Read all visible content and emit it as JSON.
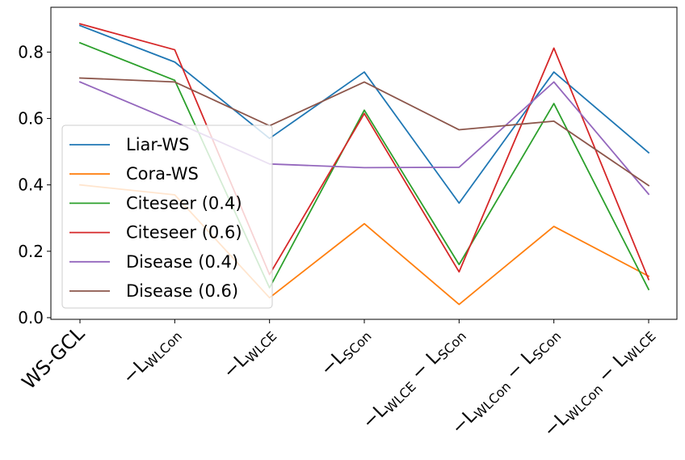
{
  "chart_data": {
    "type": "line",
    "categories": [
      {
        "id": "ws-gcl",
        "parts": [
          {
            "t": "WS-GCL"
          }
        ]
      },
      {
        "id": "minus-lwlcon",
        "parts": [
          {
            "t": "−L"
          },
          {
            "t": "WLCon",
            "sub": true
          }
        ]
      },
      {
        "id": "minus-lwlce",
        "parts": [
          {
            "t": "−L"
          },
          {
            "t": "WLCE",
            "sub": true
          }
        ]
      },
      {
        "id": "minus-lscon",
        "parts": [
          {
            "t": "−L"
          },
          {
            "t": "SCon",
            "sub": true
          }
        ]
      },
      {
        "id": "minus-lwlce-minus-lscon",
        "parts": [
          {
            "t": "−L"
          },
          {
            "t": "WLCE",
            "sub": true
          },
          {
            "t": " − L"
          },
          {
            "t": "SCon",
            "sub": true
          }
        ]
      },
      {
        "id": "minus-lwlcon-minus-lscon",
        "parts": [
          {
            "t": "−L"
          },
          {
            "t": "WLCon",
            "sub": true
          },
          {
            "t": " − L"
          },
          {
            "t": "SCon",
            "sub": true
          }
        ]
      },
      {
        "id": "minus-lwlcon-minus-lwlce",
        "parts": [
          {
            "t": "−L"
          },
          {
            "t": "WLCon",
            "sub": true
          },
          {
            "t": " − L"
          },
          {
            "t": "WLCE",
            "sub": true
          }
        ]
      }
    ],
    "series": [
      {
        "name": "Liar-WS",
        "color": "#1f77b4",
        "values": [
          0.88,
          0.77,
          0.54,
          0.74,
          0.345,
          0.74,
          0.497
        ]
      },
      {
        "name": "Cora-WS",
        "color": "#ff7f0e",
        "values": [
          0.4,
          0.37,
          0.06,
          0.283,
          0.04,
          0.275,
          0.125
        ]
      },
      {
        "name": "Citeseer (0.4)",
        "color": "#2ca02c",
        "values": [
          0.828,
          0.715,
          0.09,
          0.625,
          0.16,
          0.645,
          0.085
        ]
      },
      {
        "name": "Citeseer (0.6)",
        "color": "#d62728",
        "values": [
          0.885,
          0.807,
          0.13,
          0.615,
          0.138,
          0.812,
          0.115
        ]
      },
      {
        "name": "Disease (0.4)",
        "color": "#9467bd",
        "values": [
          0.71,
          0.59,
          0.463,
          0.452,
          0.453,
          0.71,
          0.372
        ]
      },
      {
        "name": "Disease (0.6)",
        "color": "#8c564b",
        "values": [
          0.722,
          0.71,
          0.578,
          0.71,
          0.566,
          0.592,
          0.398
        ]
      }
    ],
    "yticks": [
      "0.0",
      "0.2",
      "0.4",
      "0.6",
      "0.8"
    ],
    "ylim": [
      -0.005,
      0.935
    ],
    "grid": false,
    "legend_position": "center-left"
  }
}
